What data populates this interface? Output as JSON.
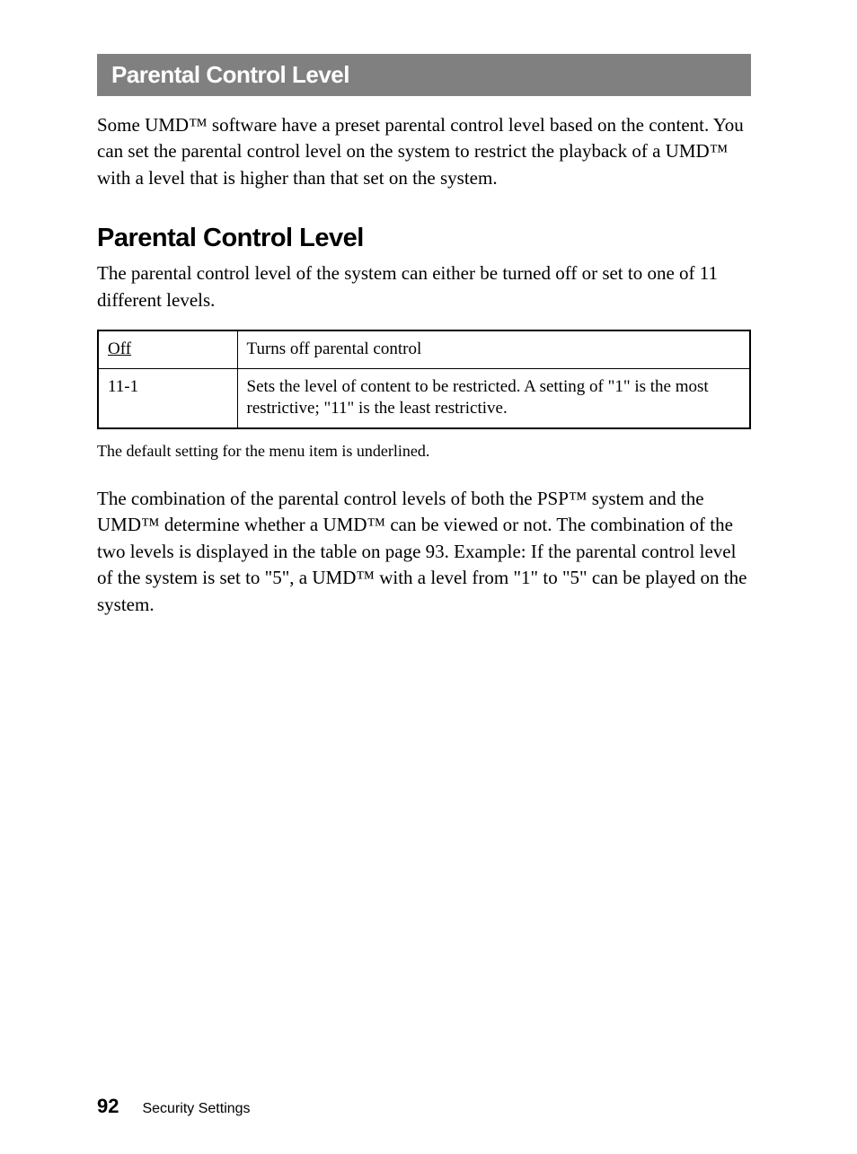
{
  "header": {
    "title": "Parental Control Level"
  },
  "intro": {
    "text": "Some UMD™ software have a preset parental control level based on the content. You can set the parental control level on the system to restrict the playback of a UMD™ with a level that is higher than that set on the system."
  },
  "section": {
    "heading": "Parental Control Level",
    "description": "The parental control level of the system can either be turned off or set to one of 11 different levels."
  },
  "table": {
    "rows": [
      {
        "key": "Off",
        "key_underlined": true,
        "value": "Turns off parental control"
      },
      {
        "key": "11-1",
        "key_underlined": false,
        "value": "Sets the level of content to be restricted. A setting of \"1\" is the most restrictive; \"11\" is the least restrictive."
      }
    ],
    "note": "The default setting for the menu item is underlined."
  },
  "body": {
    "text": "The combination of the parental control levels of both the PSP™ system and the UMD™ determine whether a UMD™ can be viewed or not. The combination of the two levels is displayed in the table on page 93. Example: If the parental control level of the system is set to \"5\", a UMD™ with a level from \"1\" to \"5\" can be played on the system."
  },
  "footer": {
    "page_number": "92",
    "section_label": "Security Settings"
  },
  "colors": {
    "header_bg": "#808080",
    "header_text": "#ffffff",
    "body_text": "#000000",
    "page_bg": "#ffffff",
    "border": "#000000"
  }
}
